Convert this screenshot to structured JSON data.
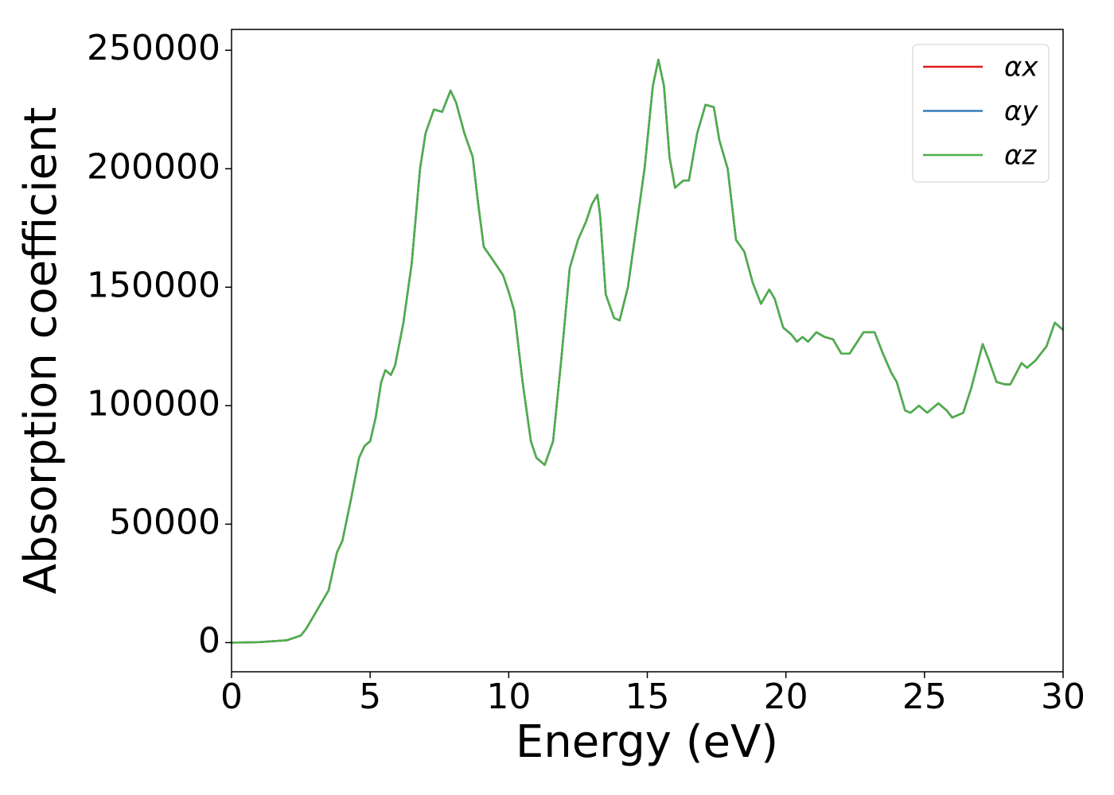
{
  "chart_data": {
    "type": "line",
    "xlabel": "Energy (eV)",
    "ylabel": "Absorption coefficient",
    "x": [
      0,
      1,
      2,
      2.5,
      2.7,
      3,
      3.5,
      3.8,
      4,
      4.3,
      4.6,
      4.8,
      5,
      5.2,
      5.4,
      5.55,
      5.75,
      5.9,
      6.2,
      6.5,
      6.8,
      7.0,
      7.3,
      7.6,
      7.9,
      8.1,
      8.4,
      8.7,
      8.9,
      9.1,
      9.4,
      9.8,
      10.0,
      10.2,
      10.5,
      10.8,
      11.0,
      11.3,
      11.6,
      11.9,
      12.2,
      12.5,
      12.8,
      13.0,
      13.2,
      13.3,
      13.5,
      13.8,
      14.0,
      14.3,
      14.6,
      14.9,
      15.2,
      15.4,
      15.6,
      15.8,
      16.0,
      16.3,
      16.5,
      16.8,
      17.1,
      17.4,
      17.6,
      17.9,
      18.2,
      18.5,
      18.8,
      19.1,
      19.4,
      19.6,
      19.9,
      20.2,
      20.4,
      20.6,
      20.8,
      21.1,
      21.4,
      21.7,
      22.0,
      22.3,
      22.8,
      23.2,
      23.5,
      23.8,
      24.0,
      24.3,
      24.5,
      24.8,
      25.1,
      25.5,
      25.8,
      26.0,
      26.4,
      26.7,
      27.1,
      27.3,
      27.6,
      27.9,
      28.1,
      28.5,
      28.7,
      29.0,
      29.4,
      29.7,
      30.0
    ],
    "series": [
      {
        "name": "αx",
        "color": "#e41a1c",
        "values": [
          0,
          200,
          1000,
          3000,
          6000,
          12000,
          22000,
          38000,
          43000,
          60000,
          78000,
          83000,
          85000,
          95000,
          110000,
          115000,
          113000,
          117000,
          135000,
          160000,
          200000,
          215000,
          225000,
          224000,
          233000,
          228000,
          215000,
          205000,
          185000,
          167000,
          162000,
          155000,
          148000,
          140000,
          110000,
          85000,
          78000,
          75000,
          85000,
          120000,
          158000,
          170000,
          178000,
          185000,
          189000,
          180000,
          147000,
          137000,
          136000,
          150000,
          175000,
          200000,
          235000,
          246000,
          235000,
          205000,
          192000,
          195000,
          195000,
          215000,
          227000,
          226000,
          212000,
          200000,
          170000,
          165000,
          152000,
          143000,
          149000,
          145000,
          133000,
          130000,
          127000,
          129000,
          127000,
          131000,
          129000,
          128000,
          122000,
          122000,
          131000,
          131000,
          122000,
          114000,
          110000,
          98000,
          97000,
          100000,
          97000,
          101000,
          98000,
          95000,
          97000,
          108000,
          126000,
          120000,
          110000,
          109000,
          109000,
          118000,
          116000,
          119000,
          125000,
          135000,
          132000
        ]
      },
      {
        "name": "αy",
        "color": "#377eb8",
        "values": [
          0,
          200,
          1000,
          3000,
          6000,
          12000,
          22000,
          38000,
          43000,
          60000,
          78000,
          83000,
          85000,
          95000,
          110000,
          115000,
          113000,
          117000,
          135000,
          160000,
          200000,
          215000,
          225000,
          224000,
          233000,
          228000,
          215000,
          205000,
          185000,
          167000,
          162000,
          155000,
          148000,
          140000,
          110000,
          85000,
          78000,
          75000,
          85000,
          120000,
          158000,
          170000,
          178000,
          185000,
          189000,
          180000,
          147000,
          137000,
          136000,
          150000,
          175000,
          200000,
          235000,
          246000,
          235000,
          205000,
          192000,
          195000,
          195000,
          215000,
          227000,
          226000,
          212000,
          200000,
          170000,
          165000,
          152000,
          143000,
          149000,
          145000,
          133000,
          130000,
          127000,
          129000,
          127000,
          131000,
          129000,
          128000,
          122000,
          122000,
          131000,
          131000,
          122000,
          114000,
          110000,
          98000,
          97000,
          100000,
          97000,
          101000,
          98000,
          95000,
          97000,
          108000,
          126000,
          120000,
          110000,
          109000,
          109000,
          118000,
          116000,
          119000,
          125000,
          135000,
          132000
        ]
      },
      {
        "name": "αz",
        "color": "#4daf4a",
        "values": [
          0,
          200,
          1000,
          3000,
          6000,
          12000,
          22000,
          38000,
          43000,
          60000,
          78000,
          83000,
          85000,
          95000,
          110000,
          115000,
          113000,
          117000,
          135000,
          160000,
          200000,
          215000,
          225000,
          224000,
          233000,
          228000,
          215000,
          205000,
          185000,
          167000,
          162000,
          155000,
          148000,
          140000,
          110000,
          85000,
          78000,
          75000,
          85000,
          120000,
          158000,
          170000,
          178000,
          185000,
          189000,
          180000,
          147000,
          137000,
          136000,
          150000,
          175000,
          200000,
          235000,
          246000,
          235000,
          205000,
          192000,
          195000,
          195000,
          215000,
          227000,
          226000,
          212000,
          200000,
          170000,
          165000,
          152000,
          143000,
          149000,
          145000,
          133000,
          130000,
          127000,
          129000,
          127000,
          131000,
          129000,
          128000,
          122000,
          122000,
          131000,
          131000,
          122000,
          114000,
          110000,
          98000,
          97000,
          100000,
          97000,
          101000,
          98000,
          95000,
          97000,
          108000,
          126000,
          120000,
          110000,
          109000,
          109000,
          118000,
          116000,
          119000,
          125000,
          135000,
          132000
        ]
      }
    ],
    "xlim": [
      0,
      30
    ],
    "xticks": [
      0,
      5,
      10,
      15,
      20,
      25,
      30
    ],
    "ylim": [
      -12300,
      258800
    ],
    "yticks": [
      0,
      50000,
      100000,
      150000,
      200000,
      250000
    ],
    "grid": false,
    "legend": "upper right"
  }
}
